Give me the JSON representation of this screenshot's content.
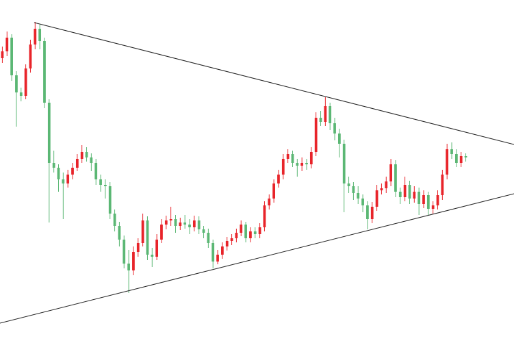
{
  "chart_data": {
    "type": "candlestick",
    "xlim": [
      -0.5,
      109.3
    ],
    "ylim": [
      0,
      520
    ],
    "up_color": "#e8242a",
    "down_color": "#5bb774",
    "open": [
      435,
      445,
      465,
      410,
      385,
      380,
      420,
      455,
      478,
      460,
      370,
      282,
      275,
      258,
      252,
      265,
      275,
      288,
      298,
      290,
      282,
      258,
      250,
      248,
      208,
      190,
      170,
      135,
      125,
      152,
      165,
      198,
      148,
      145,
      170,
      192,
      198,
      200,
      190,
      195,
      192,
      188,
      198,
      185,
      180,
      165,
      138,
      148,
      160,
      168,
      172,
      180,
      192,
      172,
      182,
      178,
      188,
      220,
      230,
      252,
      265,
      288,
      295,
      282,
      278,
      282,
      280,
      298,
      348,
      342,
      365,
      340,
      325,
      310,
      252,
      248,
      238,
      230,
      220,
      200,
      218,
      242,
      245,
      255,
      280,
      240,
      232,
      250,
      230,
      240,
      222,
      235,
      215,
      220,
      235,
      265,
      302,
      295,
      282,
      292
    ],
    "high": [
      452,
      474,
      470,
      416,
      392,
      426,
      462,
      488,
      484,
      465,
      375,
      300,
      280,
      268,
      272,
      282,
      295,
      308,
      305,
      296,
      288,
      265,
      258,
      254,
      214,
      196,
      176,
      155,
      160,
      172,
      208,
      204,
      158,
      178,
      200,
      205,
      218,
      206,
      202,
      206,
      200,
      205,
      204,
      190,
      186,
      170,
      155,
      166,
      174,
      178,
      186,
      198,
      196,
      188,
      188,
      194,
      226,
      236,
      258,
      272,
      295,
      302,
      300,
      288,
      290,
      288,
      305,
      356,
      358,
      378,
      370,
      348,
      332,
      316,
      262,
      254,
      248,
      236,
      226,
      225,
      250,
      252,
      262,
      288,
      286,
      246,
      262,
      256,
      248,
      246,
      242,
      240,
      226,
      242,
      272,
      310,
      312,
      302,
      298,
      296
    ],
    "low": [
      428,
      438,
      402,
      335,
      372,
      375,
      414,
      448,
      448,
      362,
      195,
      268,
      240,
      200,
      246,
      258,
      270,
      282,
      284,
      270,
      250,
      240,
      230,
      200,
      182,
      160,
      128,
      92,
      118,
      145,
      160,
      140,
      130,
      140,
      165,
      185,
      190,
      180,
      184,
      186,
      178,
      182,
      178,
      172,
      158,
      128,
      134,
      142,
      154,
      162,
      166,
      175,
      166,
      166,
      172,
      172,
      182,
      214,
      224,
      246,
      258,
      282,
      276,
      262,
      270,
      272,
      274,
      292,
      336,
      336,
      330,
      315,
      290,
      210,
      238,
      228,
      222,
      210,
      185,
      194,
      212,
      236,
      238,
      248,
      232,
      222,
      226,
      222,
      224,
      206,
      216,
      206,
      208,
      214,
      228,
      258,
      288,
      276,
      276,
      284
    ],
    "close": [
      445,
      465,
      410,
      385,
      380,
      420,
      455,
      478,
      460,
      370,
      282,
      275,
      258,
      252,
      265,
      275,
      288,
      298,
      290,
      282,
      258,
      250,
      248,
      208,
      190,
      170,
      135,
      125,
      152,
      165,
      198,
      148,
      145,
      170,
      192,
      198,
      200,
      190,
      195,
      192,
      188,
      198,
      185,
      180,
      165,
      138,
      148,
      160,
      168,
      172,
      180,
      192,
      172,
      182,
      178,
      188,
      220,
      230,
      252,
      265,
      288,
      295,
      282,
      278,
      282,
      280,
      298,
      348,
      342,
      365,
      340,
      325,
      310,
      252,
      248,
      238,
      230,
      220,
      200,
      218,
      242,
      245,
      255,
      280,
      240,
      232,
      250,
      230,
      240,
      222,
      235,
      215,
      220,
      235,
      265,
      302,
      295,
      282,
      292,
      290
    ],
    "lines": [
      {
        "color": "#222222",
        "x": [
          6.8,
          109.3
        ],
        "y": [
          487,
          309
        ]
      },
      {
        "color": "#222222",
        "x": [
          -0.5,
          109.3
        ],
        "y": [
          48,
          237
        ]
      }
    ]
  }
}
